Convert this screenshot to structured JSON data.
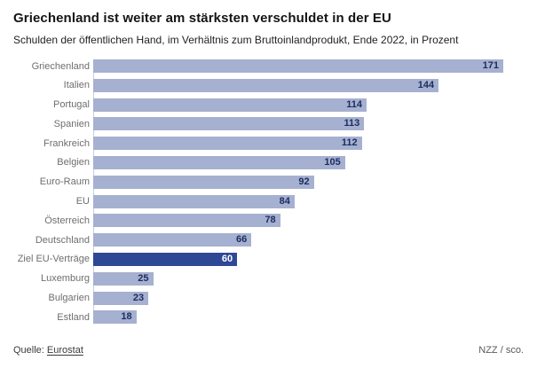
{
  "header": {
    "title": "Griechenland ist weiter am stärksten verschuldet in der EU",
    "subtitle": "Schulden der öffentlichen Hand, im Verhältnis zum Bruttoinlandprodukt, Ende 2022, in Prozent"
  },
  "chart_data": {
    "type": "bar",
    "orientation": "horizontal",
    "title": "Griechenland ist weiter am stärksten verschuldet in der EU",
    "subtitle": "Schulden der öffentlichen Hand, im Verhältnis zum Bruttoinlandprodukt, Ende 2022, in Prozent",
    "categories": [
      "Griechenland",
      "Italien",
      "Portugal",
      "Spanien",
      "Frankreich",
      "Belgien",
      "Euro-Raum",
      "EU",
      "Österreich",
      "Deutschland",
      "Ziel EU-Verträge",
      "Luxemburg",
      "Bulgarien",
      "Estland"
    ],
    "values": [
      171,
      144,
      114,
      113,
      112,
      105,
      92,
      84,
      78,
      66,
      60,
      25,
      23,
      18
    ],
    "highlight_category": "Ziel EU-Verträge",
    "xlim": [
      0,
      171
    ],
    "grid": false,
    "legend": "none",
    "value_labels": "inside-end",
    "colors": {
      "bar": "#a6b0d0",
      "highlight_bar": "#2e4896",
      "value_label": "#1b2d5e",
      "value_label_on_highlight": "#ffffff",
      "category_label": "#6e6e6e",
      "axis_line": "#c9cedb"
    }
  },
  "footer": {
    "source_label": "Quelle:",
    "source_link": "Eurostat",
    "credit": "NZZ / sco."
  }
}
